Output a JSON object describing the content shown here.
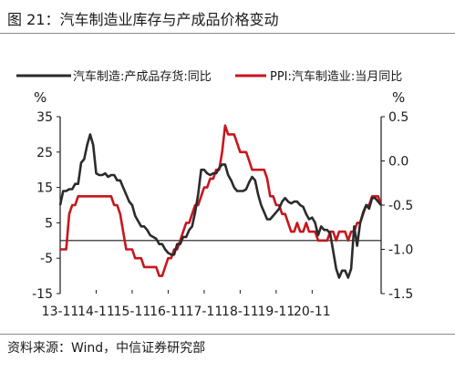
{
  "figure": {
    "title": "图 21：汽车制造业库存与产成品价格变动",
    "source": "资料来源：Wind，中信证券研究部"
  },
  "chart_data": {
    "type": "line",
    "dual_axis": true,
    "x_ticks": [
      "13-11",
      "14-11",
      "15-11",
      "16-11",
      "17-11",
      "18-11",
      "19-11",
      "20-11"
    ],
    "left_axis": {
      "unit": "%",
      "ylim": [
        -15,
        35
      ],
      "ticks": [
        35,
        25,
        15,
        5,
        -5,
        -15
      ]
    },
    "right_axis": {
      "unit": "%",
      "ylim": [
        -1.5,
        0.5
      ],
      "ticks": [
        "0.5",
        "0.0",
        "-0.5",
        "-1.0",
        "-1.5"
      ]
    },
    "legend_position": "top",
    "grid": false,
    "x_start": "2013-11",
    "series": [
      {
        "name": "汽车制造:产成品存货:同比",
        "axis": "left",
        "color": "#2b2b2b",
        "values": [
          10,
          14,
          14,
          14.5,
          14.5,
          16,
          16,
          22,
          23,
          27,
          30,
          27,
          19,
          18.5,
          18.5,
          19,
          18,
          18.5,
          18.5,
          17,
          17,
          15,
          13,
          11,
          10,
          7,
          5.5,
          4,
          4,
          3,
          1.5,
          1,
          0.5,
          -1,
          -1,
          -2.5,
          -3.5,
          -4,
          -4,
          -1,
          -1,
          1,
          1,
          3,
          4,
          8,
          13,
          20,
          20,
          19,
          18.5,
          19,
          19,
          20.5,
          21.5,
          21.5,
          18.5,
          17,
          15,
          14,
          14,
          14,
          14.5,
          16.5,
          18,
          17,
          13,
          10,
          8,
          6,
          6,
          7,
          8,
          9,
          11,
          12,
          11,
          10.5,
          11,
          11,
          10,
          9.5,
          7.5,
          6,
          6.5,
          5,
          1.5,
          4,
          3,
          3,
          2,
          -3,
          -8,
          -10.5,
          -8.5,
          -8.5,
          -10.5,
          -8,
          4,
          -1.5,
          5,
          8,
          10,
          9,
          12,
          12,
          11,
          10
        ]
      },
      {
        "name": "PPI:汽车制造业:当月同比",
        "axis": "right",
        "color": "#c8161d",
        "values": [
          -1,
          -1,
          -1,
          -0.6,
          -0.5,
          -0.5,
          -0.4,
          -0.4,
          -0.4,
          -0.4,
          -0.4,
          -0.4,
          -0.4,
          -0.4,
          -0.4,
          -0.4,
          -0.4,
          -0.4,
          -0.5,
          -0.5,
          -0.6,
          -0.8,
          -1.0,
          -1.0,
          -1.0,
          -1.1,
          -1.1,
          -1.1,
          -1.2,
          -1.2,
          -1.2,
          -1.2,
          -1.2,
          -1.3,
          -1.3,
          -1.2,
          -1.1,
          -1.1,
          -1.0,
          -1.0,
          -0.9,
          -0.8,
          -0.7,
          -0.7,
          -0.6,
          -0.5,
          -0.5,
          -0.4,
          -0.3,
          -0.3,
          -0.2,
          -0.2,
          -0.1,
          -0.1,
          0.1,
          0.4,
          0.3,
          0.3,
          0.3,
          0.2,
          0.1,
          0.1,
          0.1,
          0.0,
          -0.1,
          -0.1,
          -0.1,
          -0.1,
          -0.1,
          -0.2,
          -0.4,
          -0.4,
          -0.5,
          -0.5,
          -0.6,
          -0.6,
          -0.7,
          -0.8,
          -0.8,
          -0.7,
          -0.8,
          -0.8,
          -0.7,
          -0.8,
          -0.8,
          -0.8,
          -0.9,
          -0.9,
          -0.9,
          -0.9,
          -0.8,
          -0.8,
          -0.9,
          -0.8,
          -0.8,
          -0.8,
          -0.9,
          -0.8,
          -0.8,
          -0.7,
          -0.7,
          -0.6,
          -0.5,
          -0.5,
          -0.4,
          -0.4,
          -0.4,
          -0.5
        ]
      }
    ]
  }
}
